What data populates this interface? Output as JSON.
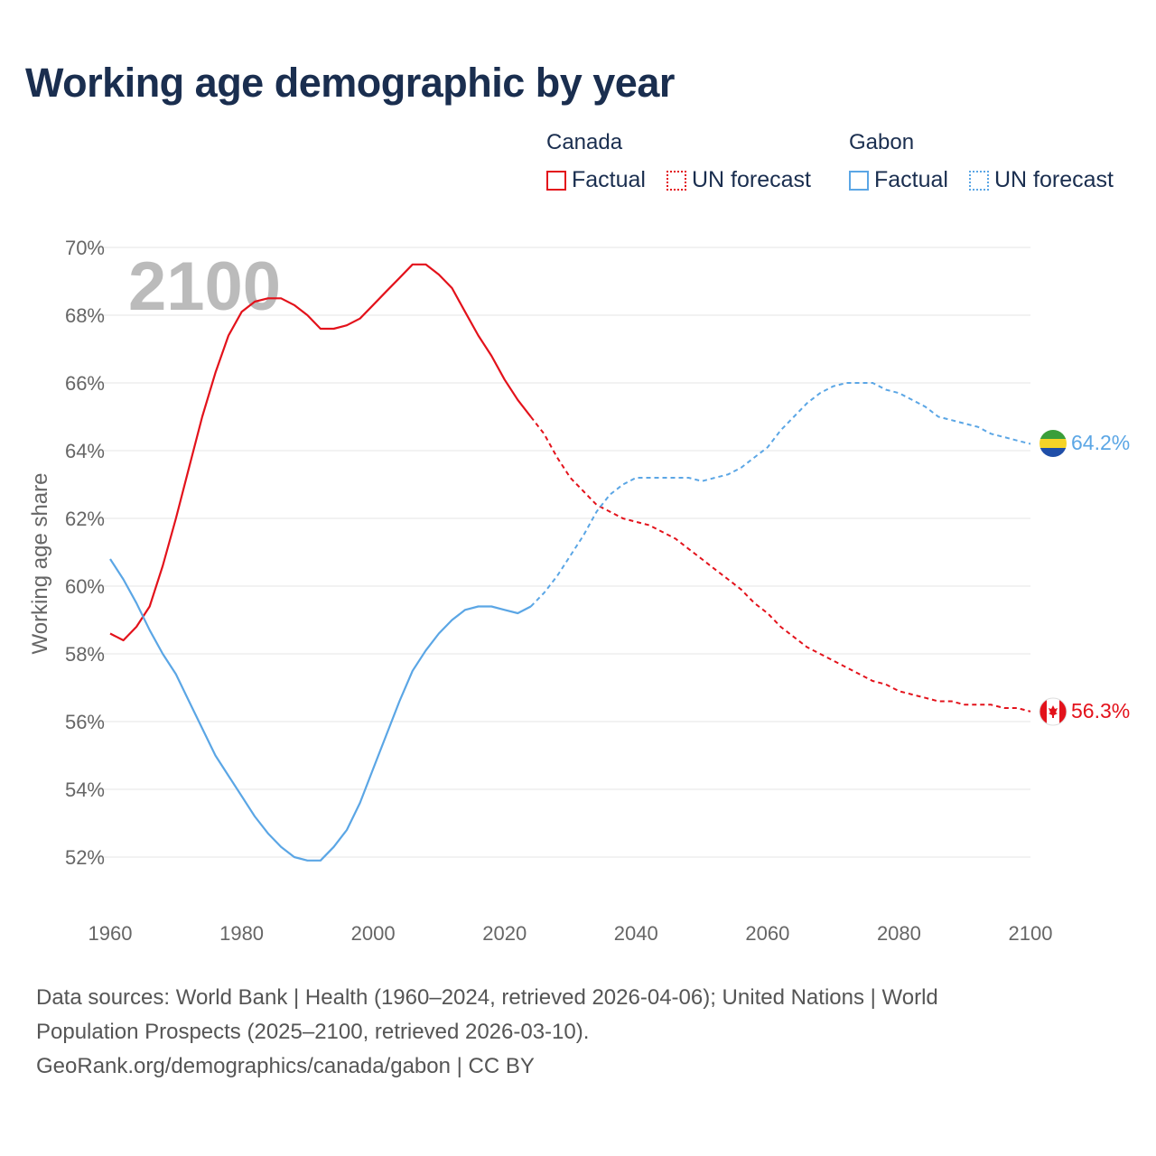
{
  "title": "Working age demographic by year",
  "legend": {
    "groups": [
      {
        "name": "Canada",
        "color": "#e3121b",
        "factual_label": "Factual",
        "forecast_label": "UN forecast"
      },
      {
        "name": "Gabon",
        "color": "#5ba6e5",
        "factual_label": "Factual",
        "forecast_label": "UN forecast"
      }
    ]
  },
  "year_watermark": "2100",
  "source": {
    "line1": "Data sources: World Bank | Health (1960–2024, retrieved 2026-04-06); United Nations | World",
    "line2": "Population Prospects (2025–2100, retrieved 2026-03-10).",
    "line3": "GeoRank.org/demographics/canada/gabon | CC BY"
  },
  "chart_data": {
    "type": "line",
    "title": "Working age demographic by year",
    "xlabel": "",
    "ylabel": "Working age share",
    "xlim": [
      1960,
      2100
    ],
    "ylim": [
      51,
      70
    ],
    "x_ticks": [
      1960,
      1980,
      2000,
      2020,
      2040,
      2060,
      2080,
      2100
    ],
    "y_ticks": [
      52,
      54,
      56,
      58,
      60,
      62,
      64,
      66,
      68,
      70
    ],
    "y_tick_labels": [
      "52%",
      "54%",
      "56%",
      "58%",
      "60%",
      "62%",
      "64%",
      "66%",
      "68%",
      "70%"
    ],
    "grid": true,
    "series": [
      {
        "name": "Canada",
        "color": "#e3121b",
        "end_label": "56.3%",
        "factual": [
          [
            1960,
            58.6
          ],
          [
            1962,
            58.4
          ],
          [
            1964,
            58.8
          ],
          [
            1966,
            59.4
          ],
          [
            1968,
            60.6
          ],
          [
            1970,
            62.0
          ],
          [
            1972,
            63.5
          ],
          [
            1974,
            65.0
          ],
          [
            1976,
            66.3
          ],
          [
            1978,
            67.4
          ],
          [
            1980,
            68.1
          ],
          [
            1982,
            68.4
          ],
          [
            1984,
            68.5
          ],
          [
            1986,
            68.5
          ],
          [
            1988,
            68.3
          ],
          [
            1990,
            68.0
          ],
          [
            1992,
            67.6
          ],
          [
            1994,
            67.6
          ],
          [
            1996,
            67.7
          ],
          [
            1998,
            67.9
          ],
          [
            2000,
            68.3
          ],
          [
            2002,
            68.7
          ],
          [
            2004,
            69.1
          ],
          [
            2006,
            69.5
          ],
          [
            2008,
            69.5
          ],
          [
            2010,
            69.2
          ],
          [
            2012,
            68.8
          ],
          [
            2014,
            68.1
          ],
          [
            2016,
            67.4
          ],
          [
            2018,
            66.8
          ],
          [
            2020,
            66.1
          ],
          [
            2022,
            65.5
          ],
          [
            2024,
            65.0
          ]
        ],
        "forecast": [
          [
            2024,
            65.0
          ],
          [
            2026,
            64.5
          ],
          [
            2028,
            63.8
          ],
          [
            2030,
            63.2
          ],
          [
            2032,
            62.8
          ],
          [
            2034,
            62.4
          ],
          [
            2036,
            62.2
          ],
          [
            2038,
            62.0
          ],
          [
            2040,
            61.9
          ],
          [
            2042,
            61.8
          ],
          [
            2044,
            61.6
          ],
          [
            2046,
            61.4
          ],
          [
            2048,
            61.1
          ],
          [
            2050,
            60.8
          ],
          [
            2052,
            60.5
          ],
          [
            2054,
            60.2
          ],
          [
            2056,
            59.9
          ],
          [
            2058,
            59.5
          ],
          [
            2060,
            59.2
          ],
          [
            2062,
            58.8
          ],
          [
            2064,
            58.5
          ],
          [
            2066,
            58.2
          ],
          [
            2068,
            58.0
          ],
          [
            2070,
            57.8
          ],
          [
            2072,
            57.6
          ],
          [
            2074,
            57.4
          ],
          [
            2076,
            57.2
          ],
          [
            2078,
            57.1
          ],
          [
            2080,
            56.9
          ],
          [
            2082,
            56.8
          ],
          [
            2084,
            56.7
          ],
          [
            2086,
            56.6
          ],
          [
            2088,
            56.6
          ],
          [
            2090,
            56.5
          ],
          [
            2092,
            56.5
          ],
          [
            2094,
            56.5
          ],
          [
            2096,
            56.4
          ],
          [
            2098,
            56.4
          ],
          [
            2100,
            56.3
          ]
        ]
      },
      {
        "name": "Gabon",
        "color": "#5ba6e5",
        "end_label": "64.2%",
        "factual": [
          [
            1960,
            60.8
          ],
          [
            1962,
            60.2
          ],
          [
            1964,
            59.5
          ],
          [
            1966,
            58.7
          ],
          [
            1968,
            58.0
          ],
          [
            1970,
            57.4
          ],
          [
            1972,
            56.6
          ],
          [
            1974,
            55.8
          ],
          [
            1976,
            55.0
          ],
          [
            1978,
            54.4
          ],
          [
            1980,
            53.8
          ],
          [
            1982,
            53.2
          ],
          [
            1984,
            52.7
          ],
          [
            1986,
            52.3
          ],
          [
            1988,
            52.0
          ],
          [
            1990,
            51.9
          ],
          [
            1992,
            51.9
          ],
          [
            1994,
            52.3
          ],
          [
            1996,
            52.8
          ],
          [
            1998,
            53.6
          ],
          [
            2000,
            54.6
          ],
          [
            2002,
            55.6
          ],
          [
            2004,
            56.6
          ],
          [
            2006,
            57.5
          ],
          [
            2008,
            58.1
          ],
          [
            2010,
            58.6
          ],
          [
            2012,
            59.0
          ],
          [
            2014,
            59.3
          ],
          [
            2016,
            59.4
          ],
          [
            2018,
            59.4
          ],
          [
            2020,
            59.3
          ],
          [
            2022,
            59.2
          ],
          [
            2024,
            59.4
          ]
        ],
        "forecast": [
          [
            2024,
            59.4
          ],
          [
            2026,
            59.8
          ],
          [
            2028,
            60.3
          ],
          [
            2030,
            60.9
          ],
          [
            2032,
            61.5
          ],
          [
            2034,
            62.2
          ],
          [
            2036,
            62.7
          ],
          [
            2038,
            63.0
          ],
          [
            2040,
            63.2
          ],
          [
            2042,
            63.2
          ],
          [
            2044,
            63.2
          ],
          [
            2046,
            63.2
          ],
          [
            2048,
            63.2
          ],
          [
            2050,
            63.1
          ],
          [
            2052,
            63.2
          ],
          [
            2054,
            63.3
          ],
          [
            2056,
            63.5
          ],
          [
            2058,
            63.8
          ],
          [
            2060,
            64.1
          ],
          [
            2062,
            64.6
          ],
          [
            2064,
            65.0
          ],
          [
            2066,
            65.4
          ],
          [
            2068,
            65.7
          ],
          [
            2070,
            65.9
          ],
          [
            2072,
            66.0
          ],
          [
            2074,
            66.0
          ],
          [
            2076,
            66.0
          ],
          [
            2078,
            65.8
          ],
          [
            2080,
            65.7
          ],
          [
            2082,
            65.5
          ],
          [
            2084,
            65.3
          ],
          [
            2086,
            65.0
          ],
          [
            2088,
            64.9
          ],
          [
            2090,
            64.8
          ],
          [
            2092,
            64.7
          ],
          [
            2094,
            64.5
          ],
          [
            2096,
            64.4
          ],
          [
            2098,
            64.3
          ],
          [
            2100,
            64.2
          ]
        ]
      }
    ]
  }
}
